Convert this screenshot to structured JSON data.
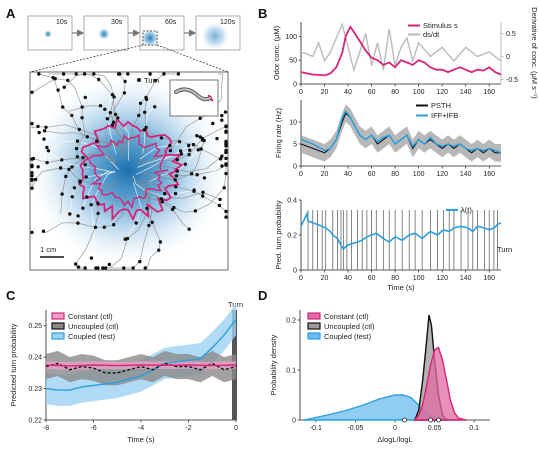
{
  "panels": {
    "A": "A",
    "B": "B",
    "C": "C",
    "D": "D"
  },
  "panelA": {
    "time_labels": [
      "10s",
      "30s",
      "60s",
      "120s"
    ],
    "legend_turn": "Turn",
    "scale_bar": "1 cm",
    "colors": {
      "path": "#888888",
      "turn": "#111111",
      "boundary": "#d6247a",
      "plume": "#1f7ab8"
    }
  },
  "chart_data": [
    {
      "type": "line",
      "id": "B1",
      "xlim": [
        0,
        170
      ],
      "xticks": [
        0,
        20,
        40,
        60,
        80,
        100,
        120,
        140,
        160
      ],
      "ylabel": "Odor conc. (μM)",
      "ylim": [
        0,
        130
      ],
      "yticks": [
        0,
        50,
        100
      ],
      "ylabel_right": "Derivative of conc. (μM s⁻¹)",
      "ylim_right": [
        -0.6,
        0.75
      ],
      "yticks_right": [
        "-0.5",
        "0",
        "0.5"
      ],
      "legend": [
        {
          "label": "Stimulus s",
          "color": "#d6247a"
        },
        {
          "label": "ds/dt",
          "color": "#bbbbbb"
        }
      ],
      "series": [
        {
          "name": "Stimulus s",
          "color": "#d6247a",
          "x": [
            0,
            10,
            20,
            25,
            30,
            35,
            38,
            42,
            46,
            50,
            55,
            60,
            65,
            70,
            75,
            80,
            85,
            90,
            95,
            100,
            105,
            110,
            115,
            120,
            125,
            130,
            135,
            140,
            145,
            150,
            155,
            160,
            165,
            170
          ],
          "y": [
            25,
            20,
            18,
            22,
            35,
            65,
            100,
            120,
            105,
            90,
            70,
            55,
            50,
            40,
            45,
            35,
            50,
            45,
            40,
            50,
            45,
            35,
            30,
            30,
            25,
            30,
            35,
            30,
            25,
            30,
            28,
            35,
            25,
            20
          ]
        },
        {
          "name": "ds/dt",
          "color": "#bbbbbb",
          "x": [
            0,
            10,
            15,
            20,
            25,
            30,
            35,
            40,
            45,
            50,
            55,
            60,
            65,
            70,
            75,
            80,
            85,
            90,
            95,
            100,
            110,
            120,
            130,
            140,
            150,
            160,
            170
          ],
          "y": [
            0.1,
            0.0,
            0.3,
            -0.1,
            0.1,
            0.4,
            0.7,
            0.2,
            -0.3,
            0.1,
            0.5,
            -0.2,
            0.3,
            -0.3,
            0.6,
            -0.2,
            0.2,
            0.4,
            -0.1,
            0.3,
            0.0,
            0.2,
            -0.1,
            0.2,
            0.0,
            0.1,
            -0.1
          ]
        }
      ]
    },
    {
      "type": "line",
      "id": "B2",
      "xlim": [
        0,
        170
      ],
      "xticks": [
        0,
        20,
        40,
        60,
        80,
        100,
        120,
        140,
        160
      ],
      "ylabel": "Firing rate (Hz)",
      "ylim": [
        0,
        15
      ],
      "yticks": [
        0,
        5,
        10
      ],
      "legend": [
        {
          "label": "PSTH",
          "color": "#111111"
        },
        {
          "label": "IFF+IFB",
          "color": "#2a9fe0"
        }
      ],
      "series": [
        {
          "name": "PSTH",
          "color": "#111111",
          "x": [
            0,
            10,
            20,
            25,
            30,
            35,
            38,
            42,
            46,
            50,
            55,
            60,
            65,
            70,
            75,
            80,
            85,
            90,
            95,
            100,
            105,
            110,
            115,
            120,
            125,
            130,
            135,
            140,
            145,
            150,
            155,
            160,
            165,
            170
          ],
          "y": [
            5,
            4,
            3,
            4,
            6,
            10,
            12,
            11,
            9,
            7,
            6,
            7,
            5,
            6,
            7,
            5,
            6,
            7,
            4,
            6,
            5,
            6,
            5,
            4,
            5,
            4,
            5,
            4,
            3,
            4,
            3,
            4,
            3,
            3
          ]
        },
        {
          "name": "IFF+IFB",
          "color": "#2a9fe0",
          "x": [
            0,
            10,
            20,
            25,
            30,
            35,
            38,
            42,
            46,
            50,
            55,
            60,
            65,
            70,
            75,
            80,
            85,
            90,
            95,
            100,
            105,
            110,
            115,
            120,
            125,
            130,
            135,
            140,
            145,
            150,
            155,
            160,
            165,
            170
          ],
          "y": [
            6,
            5,
            3.5,
            4,
            6,
            11,
            12.5,
            11,
            9,
            7,
            6,
            7,
            5.5,
            6.5,
            7,
            5,
            6,
            7,
            4.5,
            6,
            5,
            6.5,
            5,
            4.5,
            5,
            4.5,
            5,
            4,
            3.5,
            4,
            3.5,
            4,
            3.5,
            3
          ]
        }
      ]
    },
    {
      "type": "line",
      "id": "B3",
      "xlim": [
        0,
        170
      ],
      "xticks": [
        0,
        20,
        40,
        60,
        80,
        100,
        120,
        140,
        160
      ],
      "xlabel": "Time (s)",
      "ylabel": "Pred. turn probability",
      "ylim": [
        0,
        0.4
      ],
      "yticks": [
        0,
        0.2,
        0.4
      ],
      "legend": [
        {
          "label": "λ(t)",
          "color": "#2a9fe0"
        }
      ],
      "turn_label": "Turn",
      "turns": [
        6,
        10,
        14,
        18,
        21,
        27,
        31,
        34,
        36,
        39,
        43,
        48,
        52,
        56,
        60,
        64,
        70,
        75,
        80,
        86,
        92,
        97,
        103,
        110,
        116,
        121,
        126,
        130,
        136,
        142,
        146,
        150,
        156,
        160,
        164,
        167
      ],
      "series": [
        {
          "name": "λ(t)",
          "color": "#2a9fe0",
          "x": [
            0,
            5,
            6,
            10,
            14,
            18,
            21,
            25,
            27,
            31,
            34,
            36,
            39,
            43,
            48,
            52,
            56,
            60,
            64,
            70,
            75,
            80,
            86,
            92,
            97,
            103,
            110,
            116,
            121,
            126,
            130,
            136,
            142,
            146,
            150,
            156,
            160,
            164,
            167,
            170
          ],
          "y": [
            0.25,
            0.32,
            0.28,
            0.27,
            0.26,
            0.25,
            0.24,
            0.22,
            0.2,
            0.18,
            0.14,
            0.12,
            0.14,
            0.15,
            0.16,
            0.17,
            0.19,
            0.2,
            0.21,
            0.18,
            0.16,
            0.19,
            0.17,
            0.2,
            0.21,
            0.18,
            0.22,
            0.2,
            0.23,
            0.22,
            0.24,
            0.25,
            0.24,
            0.22,
            0.25,
            0.24,
            0.23,
            0.24,
            0.26,
            0.27
          ]
        }
      ]
    },
    {
      "type": "line",
      "id": "C",
      "xlabel": "Time (s)",
      "ylabel": "Predicted turn probability",
      "xlim": [
        -8,
        0
      ],
      "xticks": [
        -8,
        -6,
        -4,
        -2,
        0
      ],
      "ylim": [
        0.22,
        0.255
      ],
      "yticks": [
        0.22,
        0.23,
        0.24,
        0.25
      ],
      "legend": [
        {
          "label": "Constant (ctl)",
          "color": "#d6247a"
        },
        {
          "label": "Uncoupled (ctl)",
          "color": "#111111"
        },
        {
          "label": "Coupled (test)",
          "color": "#2a9fe0"
        }
      ],
      "turn_label": "Turn",
      "series": [
        {
          "name": "Constant (ctl)",
          "color": "#d6247a",
          "x": [
            -8,
            -7,
            -6,
            -5,
            -4,
            -3,
            -2,
            -1,
            0
          ],
          "y": [
            0.2375,
            0.2372,
            0.2375,
            0.2373,
            0.2375,
            0.2374,
            0.2375,
            0.2373,
            0.2375
          ],
          "band": 0.0012
        },
        {
          "name": "Uncoupled (ctl)",
          "color": "#111111",
          "x": [
            -8,
            -7.5,
            -7,
            -6.5,
            -6,
            -5.5,
            -5,
            -4.5,
            -4,
            -3.5,
            -3,
            -2.5,
            -2,
            -1.5,
            -1,
            -0.5,
            0
          ],
          "y": [
            0.237,
            0.238,
            0.236,
            0.237,
            0.2365,
            0.235,
            0.235,
            0.236,
            0.237,
            0.236,
            0.238,
            0.237,
            0.237,
            0.236,
            0.238,
            0.236,
            0.237
          ],
          "band": 0.004
        },
        {
          "name": "Coupled (test)",
          "color": "#2a9fe0",
          "x": [
            -8,
            -7.5,
            -7,
            -6.5,
            -6,
            -5.5,
            -5,
            -4.5,
            -4,
            -3.5,
            -3,
            -2.5,
            -2,
            -1.5,
            -1,
            -0.5,
            0
          ],
          "y": [
            0.23,
            0.2295,
            0.2295,
            0.2305,
            0.231,
            0.2315,
            0.232,
            0.233,
            0.234,
            0.236,
            0.238,
            0.2385,
            0.239,
            0.2395,
            0.243,
            0.247,
            0.252
          ],
          "band": 0.005
        }
      ]
    },
    {
      "type": "area",
      "id": "D",
      "xlabel": "ΔlogL/logL",
      "ylabel": "Probability density",
      "xlim": [
        -0.12,
        0.12
      ],
      "xticks": [
        -0.1,
        -0.05,
        0,
        0.05,
        0.1
      ],
      "ylim": [
        0,
        0.22
      ],
      "yticks": [
        0,
        0.1,
        0.2
      ],
      "legend": [
        {
          "label": "Constant (ctl)",
          "color": "#d6247a"
        },
        {
          "label": "Uncoupled (ctl)",
          "color": "#111111"
        },
        {
          "label": "Coupled (test)",
          "color": "#2a9fe0"
        }
      ],
      "series": [
        {
          "name": "Coupled (test)",
          "color": "#2a9fe0",
          "x": [
            -0.115,
            -0.1,
            -0.08,
            -0.06,
            -0.04,
            -0.02,
            0,
            0.01,
            0.02,
            0.03,
            0.04,
            0.05,
            0.06,
            0.07,
            0.08
          ],
          "y": [
            0,
            0.005,
            0.012,
            0.02,
            0.03,
            0.042,
            0.05,
            0.05,
            0.045,
            0.03,
            0.015,
            0.006,
            0.002,
            0.001,
            0
          ]
        },
        {
          "name": "Uncoupled (ctl)",
          "color": "#111111",
          "x": [
            0.025,
            0.03,
            0.035,
            0.04,
            0.043,
            0.046,
            0.05,
            0.055,
            0.06,
            0.065
          ],
          "y": [
            0,
            0.02,
            0.08,
            0.16,
            0.21,
            0.19,
            0.12,
            0.05,
            0.01,
            0
          ]
        },
        {
          "name": "Constant (ctl)",
          "color": "#d6247a",
          "x": [
            0.025,
            0.03,
            0.035,
            0.04,
            0.045,
            0.05,
            0.055,
            0.06,
            0.065,
            0.07,
            0.075,
            0.08,
            0.09
          ],
          "y": [
            0,
            0.01,
            0.03,
            0.07,
            0.11,
            0.14,
            0.145,
            0.12,
            0.08,
            0.04,
            0.015,
            0.004,
            0
          ]
        }
      ],
      "markers": [
        {
          "x": 0.012,
          "label": ""
        },
        {
          "x": 0.045,
          "label": ""
        },
        {
          "x": 0.055,
          "label": ""
        }
      ]
    }
  ]
}
